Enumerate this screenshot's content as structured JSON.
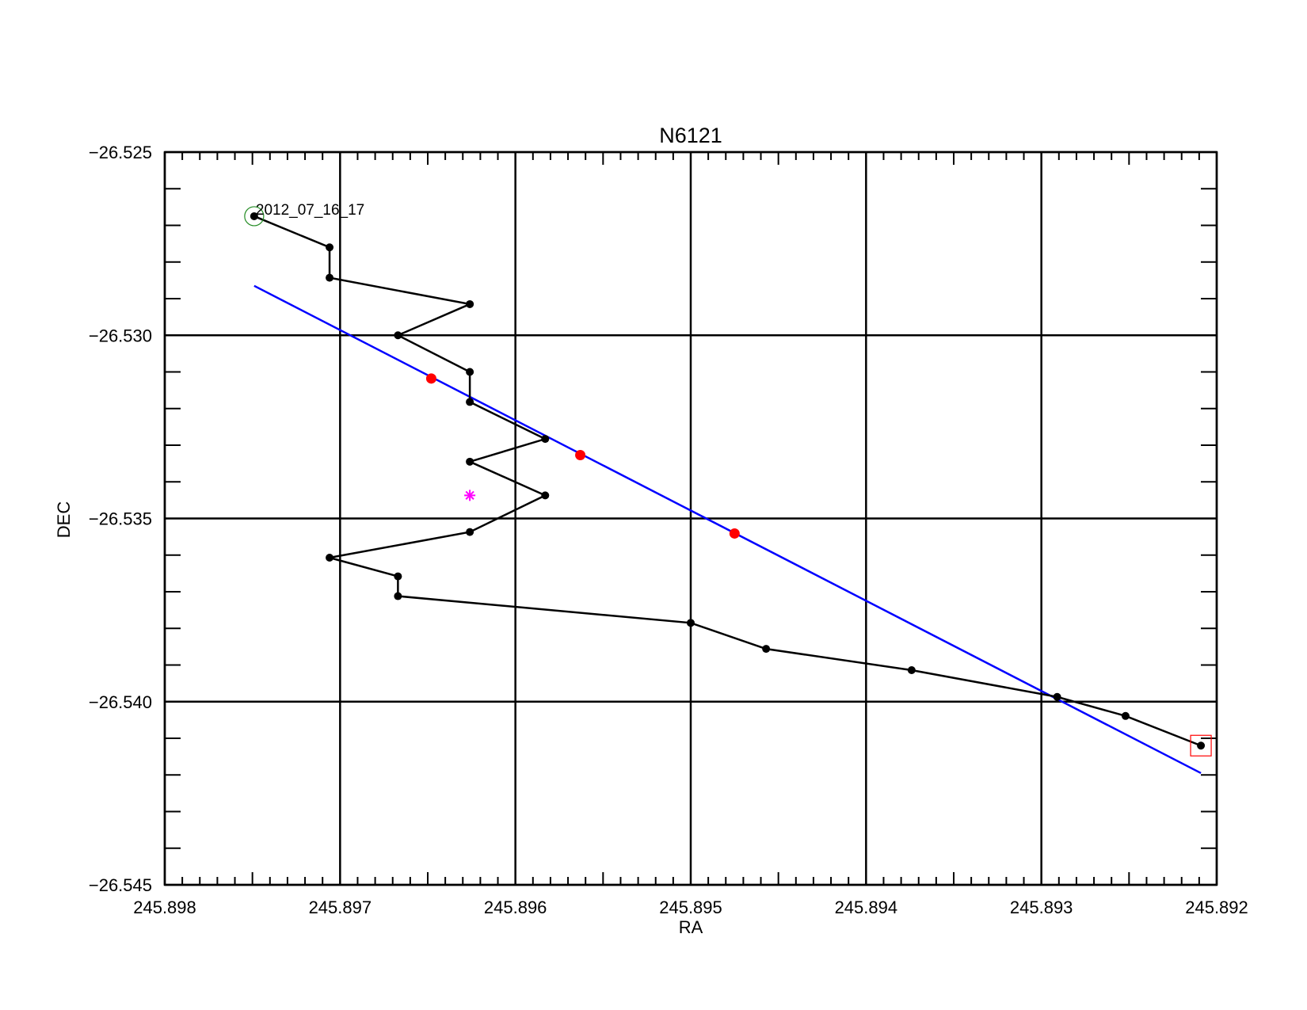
{
  "chart_data": {
    "type": "scatter",
    "title": "N6121",
    "xlabel": "RA",
    "ylabel": "DEC",
    "xlim": [
      245.898,
      245.892
    ],
    "ylim": [
      -26.545,
      -26.525
    ],
    "x_ticks": [
      {
        "value": 245.898,
        "label": "245.898"
      },
      {
        "value": 245.897,
        "label": "245.897"
      },
      {
        "value": 245.896,
        "label": "245.896"
      },
      {
        "value": 245.895,
        "label": "245.895"
      },
      {
        "value": 245.894,
        "label": "245.894"
      },
      {
        "value": 245.893,
        "label": "245.893"
      },
      {
        "value": 245.892,
        "label": "245.892"
      }
    ],
    "y_ticks": [
      {
        "value": -26.525,
        "label": "−26.525"
      },
      {
        "value": -26.53,
        "label": "−26.530"
      },
      {
        "value": -26.535,
        "label": "−26.535"
      },
      {
        "value": -26.54,
        "label": "−26.540"
      },
      {
        "value": -26.545,
        "label": "−26.545"
      }
    ],
    "x_minor_step": 0.0001,
    "y_minor_step": 0.001,
    "grid": true,
    "series": [
      {
        "role": "track",
        "color": "#000000",
        "style": "line+markers",
        "points": [
          [
            245.89749,
            -26.52675
          ],
          [
            245.89706,
            -26.5276
          ],
          [
            245.89706,
            -26.52843
          ],
          [
            245.89626,
            -26.52915
          ],
          [
            245.89667,
            -26.53
          ],
          [
            245.89626,
            -26.531
          ],
          [
            245.89626,
            -26.53182
          ],
          [
            245.89583,
            -26.53283
          ],
          [
            245.89626,
            -26.53345
          ],
          [
            245.89583,
            -26.53437
          ],
          [
            245.89626,
            -26.53537
          ],
          [
            245.89706,
            -26.53607
          ],
          [
            245.89667,
            -26.53658
          ],
          [
            245.89667,
            -26.53712
          ],
          [
            245.895,
            -26.53785
          ],
          [
            245.89457,
            -26.53856
          ],
          [
            245.89374,
            -26.53914
          ],
          [
            245.89291,
            -26.53987
          ],
          [
            245.89252,
            -26.54039
          ],
          [
            245.89209,
            -26.5412
          ]
        ]
      },
      {
        "role": "fit-line",
        "color": "#0000ff",
        "style": "line",
        "points": [
          [
            245.89749,
            -26.52865
          ],
          [
            245.89209,
            -26.54195
          ]
        ]
      },
      {
        "role": "highlight-points",
        "color": "#ff0000",
        "style": "markers",
        "points": [
          [
            245.89648,
            -26.53118
          ],
          [
            245.89563,
            -26.53327
          ],
          [
            245.89475,
            -26.53541
          ]
        ]
      },
      {
        "role": "center-marker",
        "color": "#ff00ff",
        "style": "asterisk",
        "points": [
          [
            245.89626,
            -26.53437
          ]
        ]
      }
    ],
    "start_marker": {
      "shape": "circle",
      "color": "#228b22",
      "point": [
        245.89749,
        -26.52675
      ]
    },
    "end_marker": {
      "shape": "square",
      "color": "#ff0000",
      "point": [
        245.89209,
        -26.5412
      ]
    },
    "annotations": [
      {
        "text": "2012_07_16_17",
        "point": [
          245.89749,
          -26.52675
        ]
      }
    ]
  }
}
